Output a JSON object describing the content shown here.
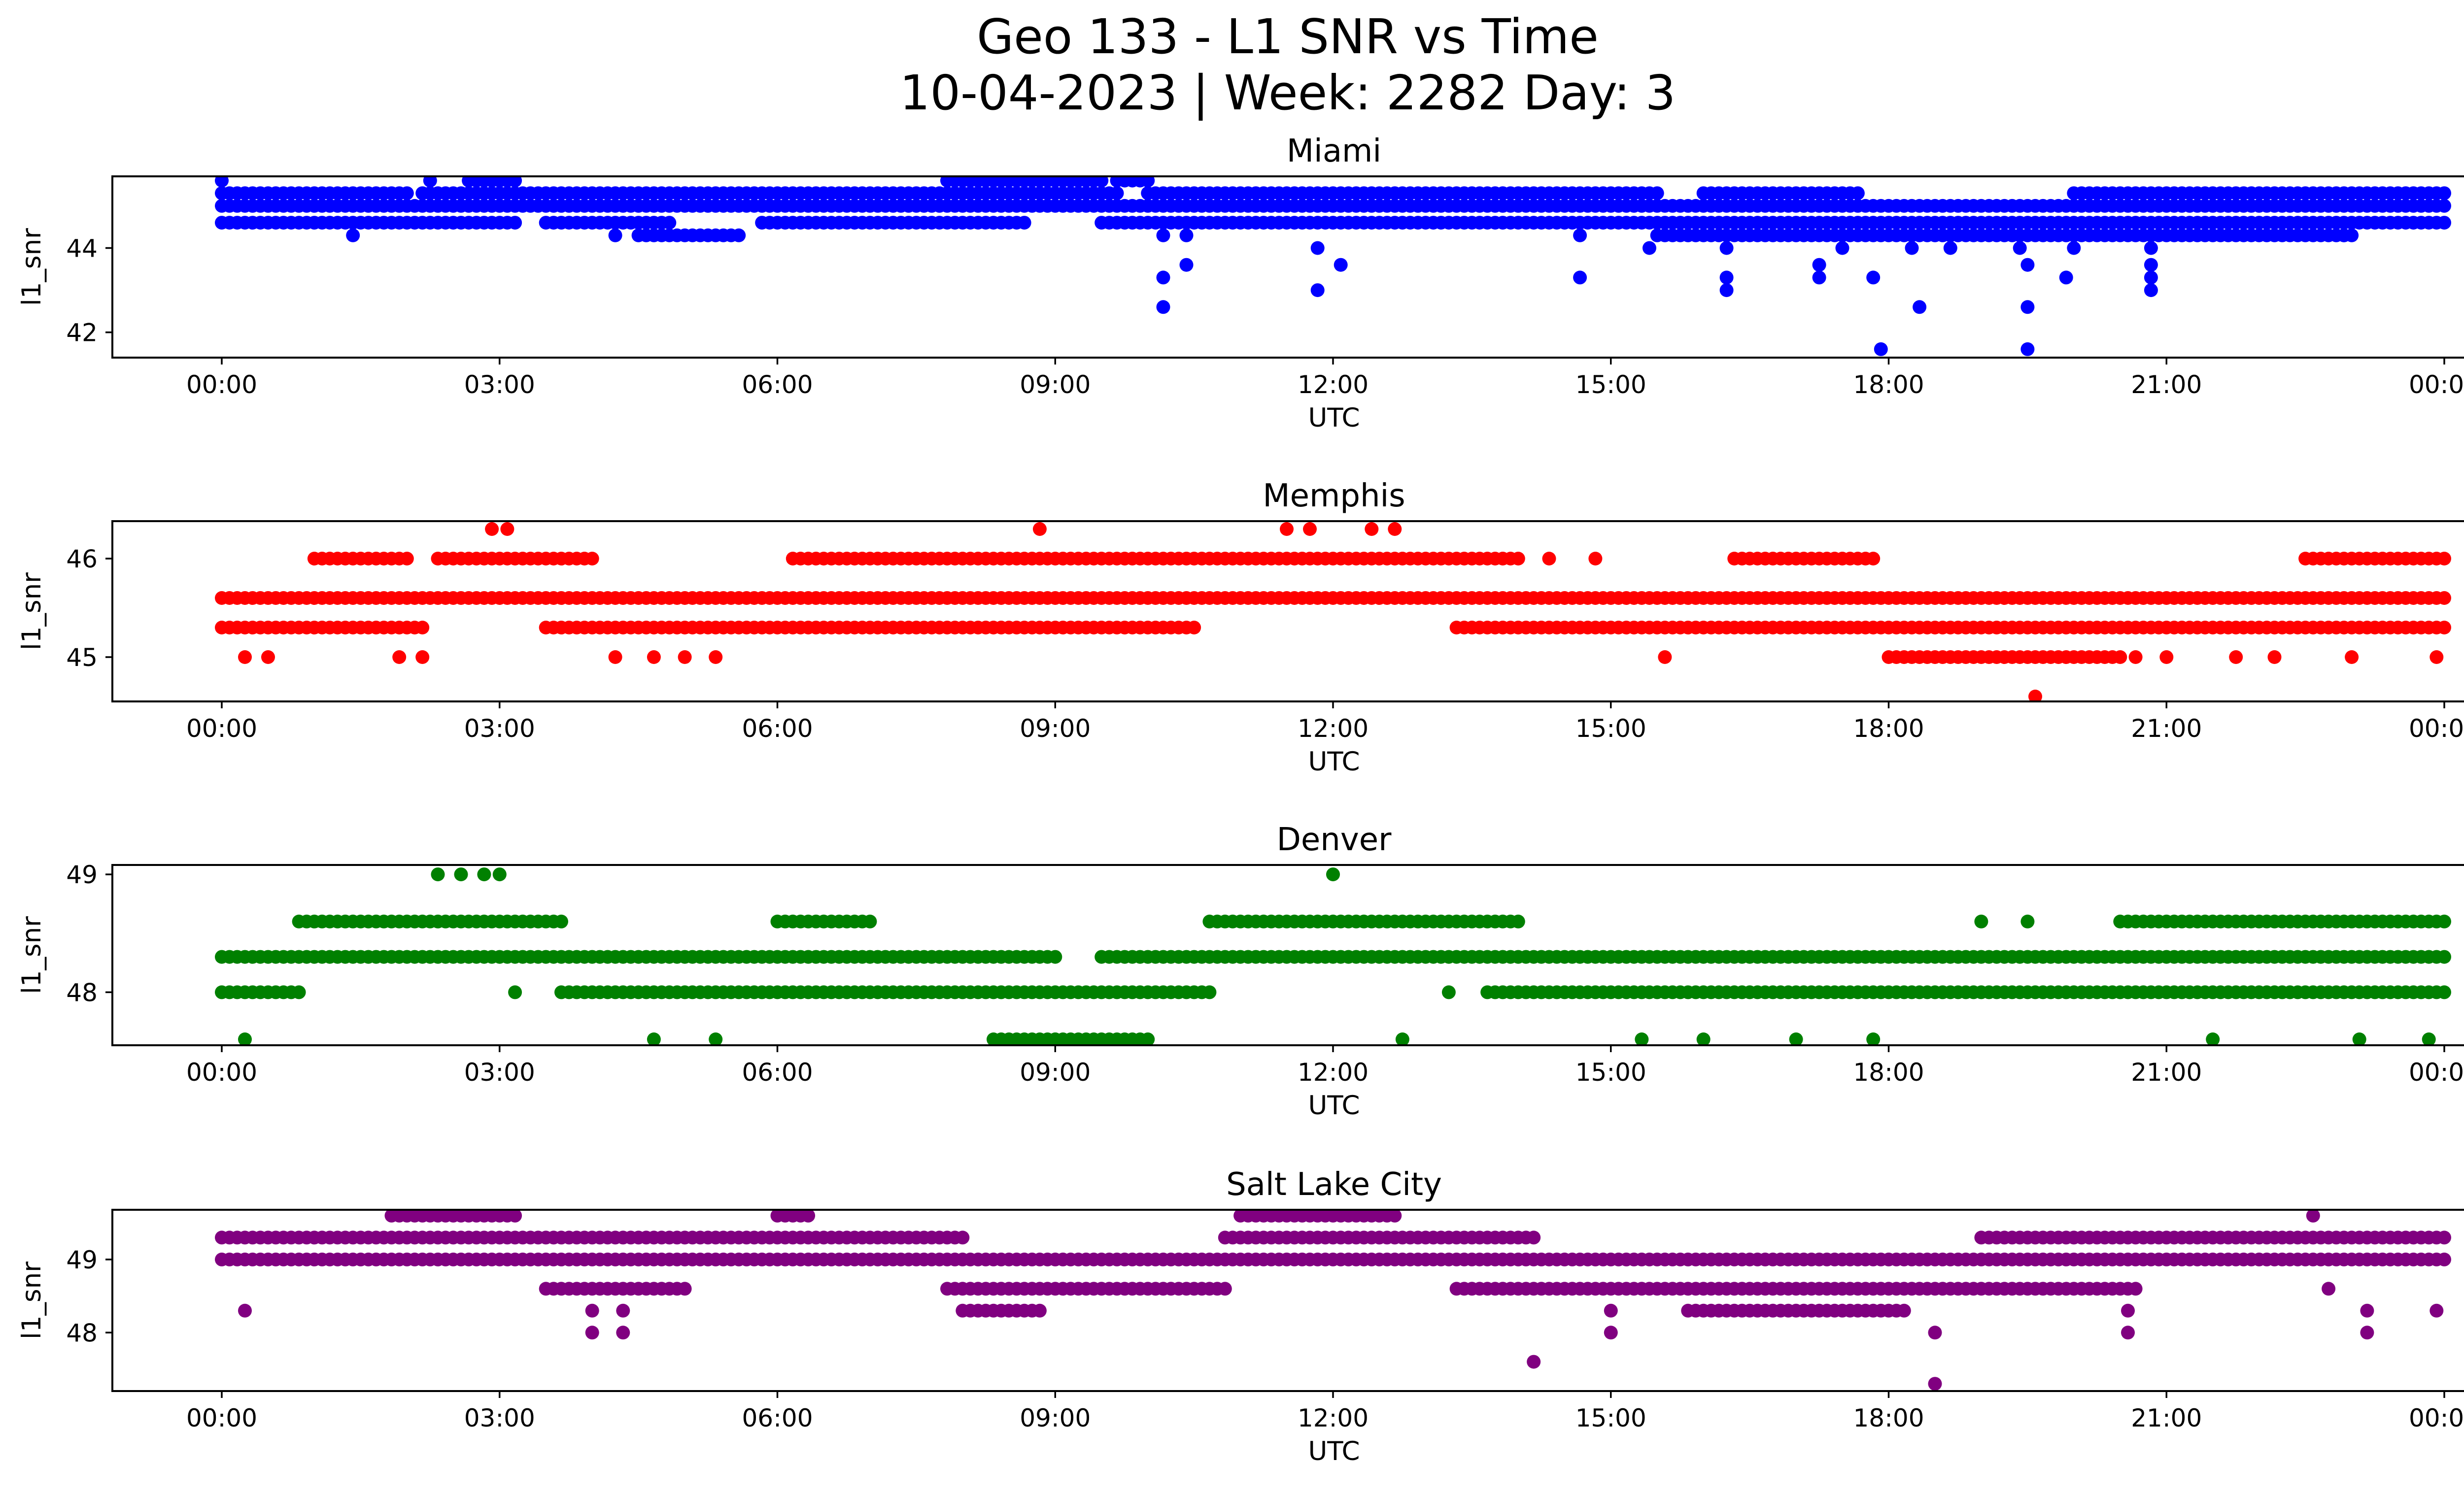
{
  "figure": {
    "title_line1": "Geo 133 - L1 SNR vs Time",
    "title_line2": "10-04-2023 | Week: 2282 Day: 3"
  },
  "chart_data": [
    {
      "type": "scatter",
      "title": "Miami",
      "color": "#0000ff",
      "xlabel": "UTC",
      "ylabel": "l1_snr",
      "xlim": [
        "00:00",
        "24:00"
      ],
      "xticks": [
        "00:00",
        "03:00",
        "06:00",
        "09:00",
        "12:00",
        "15:00",
        "18:00",
        "21:00",
        "00:00"
      ],
      "ylim": [
        41.4,
        45.7
      ],
      "yticks": [
        42,
        44
      ],
      "bands": [
        {
          "y": 45.3,
          "segments": [
            [
              "00:00",
              "02:00"
            ],
            [
              "02:10",
              "09:40"
            ],
            [
              "10:00",
              "15:30"
            ],
            [
              "16:00",
              "17:40"
            ],
            [
              "20:00",
              "24:00"
            ]
          ]
        },
        {
          "y": 45.0,
          "segments": [
            [
              "00:00",
              "24:00"
            ]
          ]
        },
        {
          "y": 44.6,
          "segments": [
            [
              "00:00",
              "03:10"
            ],
            [
              "03:30",
              "04:50"
            ],
            [
              "05:50",
              "08:40"
            ],
            [
              "09:30",
              "24:00"
            ]
          ]
        },
        {
          "y": 44.3,
          "segments": [
            [
              "04:30",
              "05:30"
            ],
            [
              "15:30",
              "23:00"
            ]
          ]
        },
        {
          "y": 45.6,
          "segments": [
            [
              "02:40",
              "03:10"
            ],
            [
              "07:50",
              "09:30"
            ],
            [
              "09:40",
              "10:00"
            ]
          ]
        }
      ],
      "outliers": [
        {
          "x": "00:00",
          "y": 45.6
        },
        {
          "x": "01:25",
          "y": 44.3
        },
        {
          "x": "02:15",
          "y": 45.6
        },
        {
          "x": "04:15",
          "y": 44.3
        },
        {
          "x": "05:35",
          "y": 44.3
        },
        {
          "x": "10:10",
          "y": 44.3
        },
        {
          "x": "10:10",
          "y": 43.3
        },
        {
          "x": "10:10",
          "y": 42.6
        },
        {
          "x": "10:25",
          "y": 44.3
        },
        {
          "x": "10:25",
          "y": 43.6
        },
        {
          "x": "11:50",
          "y": 44.0
        },
        {
          "x": "11:50",
          "y": 43.0
        },
        {
          "x": "12:05",
          "y": 43.6
        },
        {
          "x": "14:40",
          "y": 44.3
        },
        {
          "x": "14:40",
          "y": 43.3
        },
        {
          "x": "15:25",
          "y": 44.0
        },
        {
          "x": "16:15",
          "y": 44.0
        },
        {
          "x": "16:15",
          "y": 43.3
        },
        {
          "x": "16:15",
          "y": 43.0
        },
        {
          "x": "17:15",
          "y": 43.6
        },
        {
          "x": "17:15",
          "y": 43.3
        },
        {
          "x": "17:30",
          "y": 44.0
        },
        {
          "x": "17:50",
          "y": 43.3
        },
        {
          "x": "17:55",
          "y": 41.6
        },
        {
          "x": "18:15",
          "y": 44.0
        },
        {
          "x": "18:20",
          "y": 42.6
        },
        {
          "x": "18:40",
          "y": 44.0
        },
        {
          "x": "19:25",
          "y": 44.0
        },
        {
          "x": "19:30",
          "y": 43.6
        },
        {
          "x": "19:30",
          "y": 42.6
        },
        {
          "x": "19:30",
          "y": 41.6
        },
        {
          "x": "19:55",
          "y": 43.3
        },
        {
          "x": "20:00",
          "y": 44.0
        },
        {
          "x": "20:50",
          "y": 44.0
        },
        {
          "x": "20:50",
          "y": 43.6
        },
        {
          "x": "20:50",
          "y": 43.3
        },
        {
          "x": "20:50",
          "y": 43.0
        },
        {
          "x": "22:55",
          "y": 44.3
        }
      ]
    },
    {
      "type": "scatter",
      "title": "Memphis",
      "color": "#ff0000",
      "xlabel": "UTC",
      "ylabel": "l1_snr",
      "xlim": [
        "00:00",
        "24:00"
      ],
      "xticks": [
        "00:00",
        "03:00",
        "06:00",
        "09:00",
        "12:00",
        "15:00",
        "18:00",
        "21:00",
        "00:00"
      ],
      "ylim": [
        44.55,
        46.38
      ],
      "yticks": [
        45,
        46
      ],
      "bands": [
        {
          "y": 45.6,
          "segments": [
            [
              "00:00",
              "24:00"
            ]
          ]
        },
        {
          "y": 45.3,
          "segments": [
            [
              "00:00",
              "02:10"
            ],
            [
              "03:30",
              "10:30"
            ],
            [
              "13:20",
              "24:00"
            ]
          ]
        },
        {
          "y": 46.0,
          "segments": [
            [
              "01:00",
              "02:00"
            ],
            [
              "02:20",
              "04:00"
            ],
            [
              "06:10",
              "14:00"
            ],
            [
              "16:20",
              "17:50"
            ],
            [
              "22:30",
              "24:00"
            ]
          ]
        },
        {
          "y": 45.0,
          "segments": [
            [
              "18:00",
              "20:30"
            ]
          ]
        }
      ],
      "outliers": [
        {
          "x": "00:15",
          "y": 45.0
        },
        {
          "x": "00:30",
          "y": 45.0
        },
        {
          "x": "01:55",
          "y": 45.0
        },
        {
          "x": "02:10",
          "y": 45.0
        },
        {
          "x": "02:55",
          "y": 46.3
        },
        {
          "x": "03:05",
          "y": 46.3
        },
        {
          "x": "04:15",
          "y": 45.0
        },
        {
          "x": "04:40",
          "y": 45.0
        },
        {
          "x": "05:00",
          "y": 45.0
        },
        {
          "x": "05:20",
          "y": 45.0
        },
        {
          "x": "08:50",
          "y": 46.3
        },
        {
          "x": "11:30",
          "y": 46.3
        },
        {
          "x": "11:45",
          "y": 46.3
        },
        {
          "x": "12:25",
          "y": 46.3
        },
        {
          "x": "12:40",
          "y": 46.3
        },
        {
          "x": "14:20",
          "y": 46.0
        },
        {
          "x": "14:50",
          "y": 46.0
        },
        {
          "x": "15:35",
          "y": 45.0
        },
        {
          "x": "19:35",
          "y": 44.6
        },
        {
          "x": "20:40",
          "y": 45.0
        },
        {
          "x": "21:00",
          "y": 45.0
        },
        {
          "x": "21:45",
          "y": 45.0
        },
        {
          "x": "22:10",
          "y": 45.0
        },
        {
          "x": "23:00",
          "y": 45.0
        },
        {
          "x": "23:55",
          "y": 45.0
        }
      ]
    },
    {
      "type": "scatter",
      "title": "Denver",
      "color": "#008000",
      "xlabel": "UTC",
      "ylabel": "l1_snr",
      "xlim": [
        "00:00",
        "24:00"
      ],
      "xticks": [
        "00:00",
        "03:00",
        "06:00",
        "09:00",
        "12:00",
        "15:00",
        "18:00",
        "21:00",
        "00:00"
      ],
      "ylim": [
        47.55,
        49.08
      ],
      "yticks": [
        48,
        49
      ],
      "bands": [
        {
          "y": 48.3,
          "segments": [
            [
              "00:00",
              "09:00"
            ],
            [
              "09:30",
              "24:00"
            ]
          ]
        },
        {
          "y": 48.0,
          "segments": [
            [
              "00:00",
              "00:50"
            ],
            [
              "03:40",
              "10:40"
            ],
            [
              "13:40",
              "24:00"
            ]
          ]
        },
        {
          "y": 48.6,
          "segments": [
            [
              "00:50",
              "03:40"
            ],
            [
              "06:00",
              "07:00"
            ],
            [
              "10:40",
              "14:00"
            ],
            [
              "20:30",
              "24:00"
            ]
          ]
        },
        {
          "y": 47.6,
          "segments": [
            [
              "08:20",
              "09:00"
            ],
            [
              "09:00",
              "10:00"
            ]
          ]
        }
      ],
      "outliers": [
        {
          "x": "00:15",
          "y": 47.6
        },
        {
          "x": "02:20",
          "y": 49.0
        },
        {
          "x": "02:35",
          "y": 49.0
        },
        {
          "x": "02:50",
          "y": 49.0
        },
        {
          "x": "03:00",
          "y": 49.0
        },
        {
          "x": "03:10",
          "y": 48.0
        },
        {
          "x": "04:40",
          "y": 47.6
        },
        {
          "x": "05:20",
          "y": 47.6
        },
        {
          "x": "12:00",
          "y": 49.0
        },
        {
          "x": "12:45",
          "y": 47.6
        },
        {
          "x": "13:15",
          "y": 48.0
        },
        {
          "x": "15:20",
          "y": 47.6
        },
        {
          "x": "16:00",
          "y": 47.6
        },
        {
          "x": "17:00",
          "y": 47.6
        },
        {
          "x": "17:50",
          "y": 47.6
        },
        {
          "x": "19:00",
          "y": 48.6
        },
        {
          "x": "19:30",
          "y": 48.6
        },
        {
          "x": "21:30",
          "y": 47.6
        },
        {
          "x": "23:05",
          "y": 47.6
        },
        {
          "x": "23:50",
          "y": 47.6
        }
      ]
    },
    {
      "type": "scatter",
      "title": "Salt Lake City",
      "color": "#800080",
      "xlabel": "UTC",
      "ylabel": "l1_snr",
      "xlim": [
        "00:00",
        "24:00"
      ],
      "xticks": [
        "00:00",
        "03:00",
        "06:00",
        "09:00",
        "12:00",
        "15:00",
        "18:00",
        "21:00",
        "00:00"
      ],
      "ylim": [
        47.2,
        49.68
      ],
      "yticks": [
        48,
        49
      ],
      "bands": [
        {
          "y": 49.0,
          "segments": [
            [
              "00:00",
              "24:00"
            ]
          ]
        },
        {
          "y": 49.3,
          "segments": [
            [
              "00:00",
              "08:00"
            ],
            [
              "10:50",
              "14:10"
            ],
            [
              "19:00",
              "24:00"
            ]
          ]
        },
        {
          "y": 48.6,
          "segments": [
            [
              "03:30",
              "05:00"
            ],
            [
              "07:50",
              "10:50"
            ],
            [
              "13:20",
              "20:40"
            ]
          ]
        },
        {
          "y": 48.3,
          "segments": [
            [
              "08:00",
              "08:50"
            ],
            [
              "15:50",
              "18:10"
            ]
          ]
        },
        {
          "y": 49.6,
          "segments": [
            [
              "01:50",
              "03:10"
            ],
            [
              "06:00",
              "06:20"
            ],
            [
              "11:00",
              "12:40"
            ]
          ]
        }
      ],
      "outliers": [
        {
          "x": "00:15",
          "y": 48.3
        },
        {
          "x": "04:00",
          "y": 48.3
        },
        {
          "x": "04:00",
          "y": 48.0
        },
        {
          "x": "04:20",
          "y": 48.3
        },
        {
          "x": "04:20",
          "y": 48.0
        },
        {
          "x": "14:10",
          "y": 47.6
        },
        {
          "x": "15:00",
          "y": 48.3
        },
        {
          "x": "15:00",
          "y": 48.0
        },
        {
          "x": "18:30",
          "y": 48.0
        },
        {
          "x": "18:30",
          "y": 47.3
        },
        {
          "x": "20:35",
          "y": 48.3
        },
        {
          "x": "20:35",
          "y": 48.0
        },
        {
          "x": "22:35",
          "y": 49.6
        },
        {
          "x": "22:45",
          "y": 48.6
        },
        {
          "x": "23:10",
          "y": 48.3
        },
        {
          "x": "23:10",
          "y": 48.0
        },
        {
          "x": "23:55",
          "y": 48.3
        }
      ]
    }
  ]
}
